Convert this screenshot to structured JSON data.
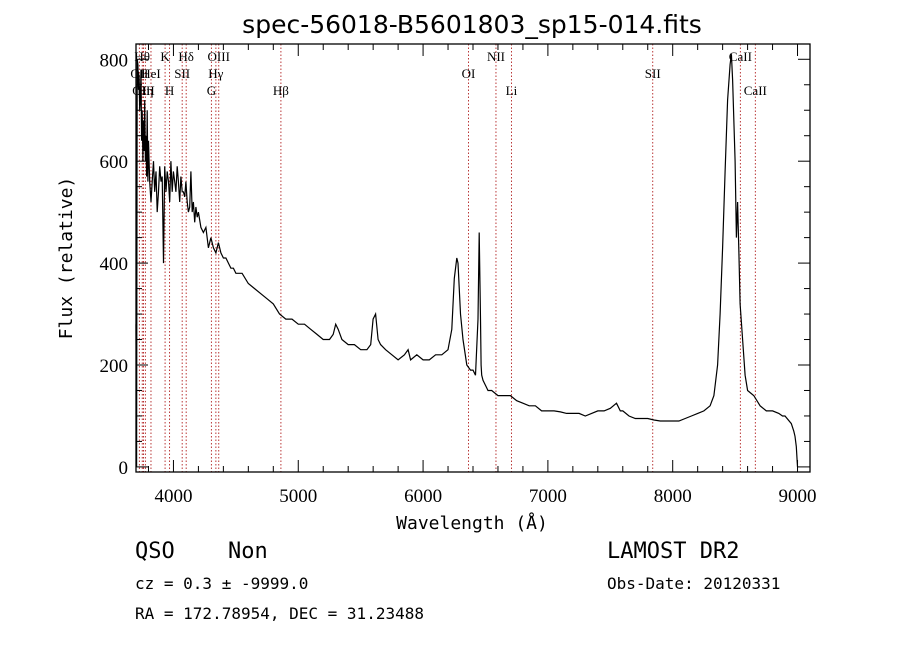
{
  "chart_data": {
    "type": "line",
    "title": "spec-56018-B5601803_sp15-014.fits",
    "xlabel": "Wavelength (Å)",
    "ylabel": "Flux (relative)",
    "xlim": [
      3700,
      9100
    ],
    "ylim": [
      -10,
      830
    ],
    "x_ticks": [
      4000,
      5000,
      6000,
      7000,
      8000,
      9000
    ],
    "y_ticks": [
      0,
      200,
      400,
      600,
      800
    ],
    "grid": false,
    "series": [
      {
        "x": [
          3700,
          3705,
          3710,
          3715,
          3720,
          3725,
          3730,
          3735,
          3740,
          3745,
          3750,
          3755,
          3760,
          3765,
          3770,
          3775,
          3780,
          3785,
          3790,
          3795,
          3800,
          3810,
          3820,
          3830,
          3840,
          3850,
          3860,
          3870,
          3880,
          3890,
          3900,
          3910,
          3920,
          3930,
          3940,
          3950,
          3960,
          3970,
          3980,
          3990,
          4000,
          4010,
          4020,
          4030,
          4040,
          4050,
          4060,
          4070,
          4080,
          4090,
          4100,
          4110,
          4120,
          4130,
          4140,
          4150,
          4160,
          4170,
          4180,
          4190,
          4200,
          4220,
          4240,
          4260,
          4280,
          4300,
          4320,
          4340,
          4360,
          4380,
          4400,
          4420,
          4440,
          4460,
          4480,
          4500,
          4550,
          4600,
          4650,
          4700,
          4750,
          4800,
          4850,
          4900,
          4950,
          5000,
          5050,
          5100,
          5150,
          5200,
          5250,
          5280,
          5300,
          5320,
          5350,
          5400,
          5450,
          5500,
          5550,
          5580,
          5600,
          5620,
          5640,
          5660,
          5700,
          5750,
          5800,
          5850,
          5880,
          5900,
          5950,
          6000,
          6050,
          6100,
          6150,
          6200,
          6230,
          6250,
          6270,
          6280,
          6300,
          6320,
          6350,
          6380,
          6400,
          6420,
          6440,
          6450,
          6460,
          6465,
          6470,
          6480,
          6500,
          6520,
          6550,
          6600,
          6650,
          6700,
          6750,
          6800,
          6850,
          6900,
          6950,
          7000,
          7050,
          7100,
          7150,
          7200,
          7250,
          7300,
          7350,
          7400,
          7450,
          7500,
          7550,
          7580,
          7600,
          7650,
          7700,
          7750,
          7800,
          7850,
          7900,
          7950,
          8000,
          8050,
          8100,
          8150,
          8200,
          8250,
          8300,
          8330,
          8360,
          8380,
          8400,
          8420,
          8440,
          8460,
          8470,
          8480,
          8500,
          8510,
          8520,
          8530,
          8540,
          8560,
          8580,
          8600,
          8650,
          8700,
          8750,
          8800,
          8850,
          8880,
          8900,
          8950,
          8970,
          8980,
          8990,
          9000
        ],
        "y": [
          280,
          0,
          800,
          790,
          740,
          770,
          700,
          720,
          780,
          640,
          700,
          600,
          680,
          620,
          720,
          600,
          650,
          570,
          700,
          560,
          640,
          560,
          520,
          560,
          600,
          540,
          580,
          500,
          540,
          590,
          560,
          570,
          400,
          590,
          540,
          580,
          560,
          520,
          600,
          540,
          580,
          560,
          540,
          590,
          560,
          520,
          570,
          540,
          540,
          530,
          560,
          520,
          500,
          510,
          580,
          500,
          520,
          480,
          510,
          490,
          500,
          470,
          460,
          470,
          430,
          450,
          430,
          420,
          440,
          420,
          410,
          410,
          400,
          390,
          390,
          380,
          380,
          360,
          350,
          340,
          330,
          320,
          300,
          290,
          290,
          280,
          280,
          270,
          260,
          250,
          250,
          260,
          280,
          270,
          250,
          240,
          240,
          230,
          230,
          240,
          290,
          300,
          250,
          240,
          230,
          220,
          210,
          220,
          230,
          210,
          220,
          210,
          210,
          220,
          220,
          230,
          270,
          370,
          410,
          400,
          300,
          250,
          200,
          190,
          190,
          180,
          290,
          460,
          290,
          200,
          180,
          170,
          160,
          150,
          150,
          140,
          140,
          140,
          130,
          125,
          120,
          120,
          110,
          110,
          110,
          108,
          105,
          105,
          105,
          100,
          105,
          110,
          110,
          115,
          125,
          110,
          110,
          100,
          95,
          95,
          95,
          92,
          90,
          90,
          90,
          90,
          95,
          100,
          105,
          110,
          120,
          140,
          200,
          300,
          430,
          580,
          720,
          790,
          810,
          760,
          600,
          450,
          520,
          420,
          320,
          250,
          180,
          150,
          140,
          120,
          110,
          110,
          105,
          100,
          100,
          85,
          70,
          60,
          40,
          0
        ]
      }
    ],
    "lines": [
      {
        "label": "OII",
        "x": 3727,
        "row": 2
      },
      {
        "label": "Hθ",
        "x": 3750,
        "row": 1
      },
      {
        "label": "OIII",
        "x": 3760,
        "row": 3
      },
      {
        "label": "Hη",
        "x": 3775,
        "row": 3
      },
      {
        "label": "HeI",
        "x": 3820,
        "row": 2
      },
      {
        "label": "K",
        "x": 3933,
        "row": 1
      },
      {
        "label": "SII",
        "x": 4070,
        "row": 2
      },
      {
        "label": "H",
        "x": 3969,
        "row": 3
      },
      {
        "label": "Hδ",
        "x": 4102,
        "row": 1
      },
      {
        "label": "OIII",
        "x": 4363,
        "row": 1
      },
      {
        "label": "Hγ",
        "x": 4340,
        "row": 2
      },
      {
        "label": "G",
        "x": 4304,
        "row": 3
      },
      {
        "label": "Hβ",
        "x": 4861,
        "row": 3
      },
      {
        "label": "OI",
        "x": 6364,
        "row": 2
      },
      {
        "label": "NII",
        "x": 6584,
        "row": 1
      },
      {
        "label": "Li",
        "x": 6708,
        "row": 3
      },
      {
        "label": "SII",
        "x": 7840,
        "row": 2
      },
      {
        "label": "CaII",
        "x": 8542,
        "row": 1
      },
      {
        "label": "CaII",
        "x": 8662,
        "row": 3
      }
    ]
  },
  "info": {
    "class": "QSO",
    "subclass": "Non",
    "survey": "LAMOST DR2",
    "cz": "cz = 0.3 ± -9999.0",
    "obs_date": "Obs-Date: 20120331",
    "coords": "RA = 172.78954, DEC =  31.23488"
  }
}
